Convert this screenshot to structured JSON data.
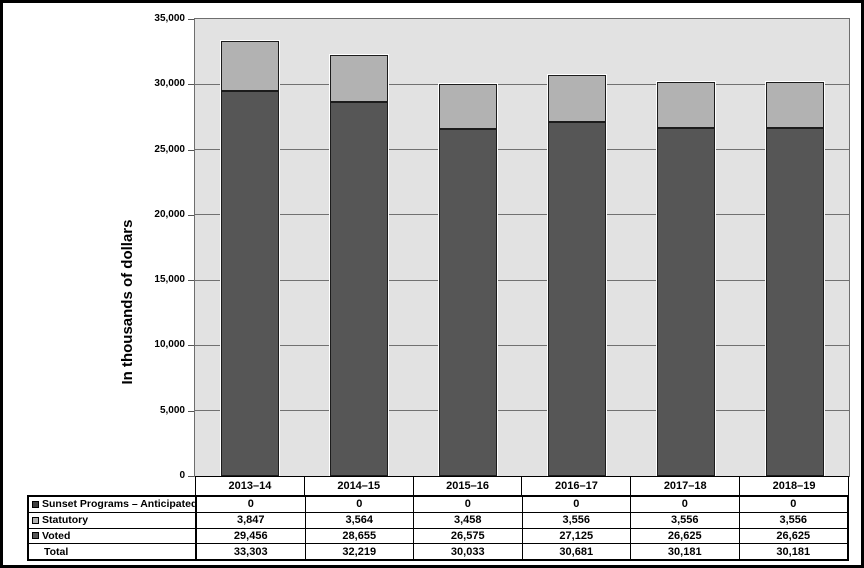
{
  "chart_data": {
    "type": "bar",
    "stacked": true,
    "ylabel": "In thousands of dollars",
    "ylim": [
      0,
      35000
    ],
    "ytick_step": 5000,
    "ytick_labels": [
      "0",
      "5,000",
      "10,000",
      "15,000",
      "20,000",
      "25,000",
      "30,000",
      "35,000"
    ],
    "grid": true,
    "legend_position": "table-left",
    "categories": [
      "2013–14",
      "2014–15",
      "2015–16",
      "2016–17",
      "2017–18",
      "2018–19"
    ],
    "series": [
      {
        "name": "Sunset Programs – Anticipated",
        "values": [
          0,
          0,
          0,
          0,
          0,
          0
        ],
        "color": "#3f3f3f"
      },
      {
        "name": "Statutory",
        "values": [
          3847,
          3564,
          3458,
          3556,
          3556,
          3556
        ],
        "color": "#b2b2b2"
      },
      {
        "name": "Voted",
        "values": [
          29456,
          28655,
          26575,
          27125,
          26625,
          26625
        ],
        "color": "#565656"
      }
    ],
    "totals": {
      "name": "Total",
      "values": [
        33303,
        32219,
        30033,
        30681,
        30181,
        30181
      ]
    }
  },
  "table": {
    "header_row": [
      "2013–14",
      "2014–15",
      "2015–16",
      "2016–17",
      "2017–18",
      "2018–19"
    ],
    "rows": [
      {
        "label": "Sunset Programs – Anticipated",
        "key_color": "#3f3f3f",
        "values": [
          "0",
          "0",
          "0",
          "0",
          "0",
          "0"
        ]
      },
      {
        "label": "Statutory",
        "key_color": "#b2b2b2",
        "values": [
          "3,847",
          "3,564",
          "3,458",
          "3,556",
          "3,556",
          "3,556"
        ]
      },
      {
        "label": "Voted",
        "key_color": "#565656",
        "values": [
          "29,456",
          "28,655",
          "26,575",
          "27,125",
          "26,625",
          "26,625"
        ]
      },
      {
        "label": "Total",
        "key_color": null,
        "values": [
          "33,303",
          "32,219",
          "30,033",
          "30,681",
          "30,181",
          "30,181"
        ]
      }
    ]
  },
  "colors": {
    "plot_bg": "#e2e2e2",
    "gridline": "#717171",
    "bar_border": "#1c1c1c",
    "table_border": "#000000",
    "statutory": "#b2b2b2",
    "voted": "#565656",
    "sunset": "#3f3f3f"
  }
}
